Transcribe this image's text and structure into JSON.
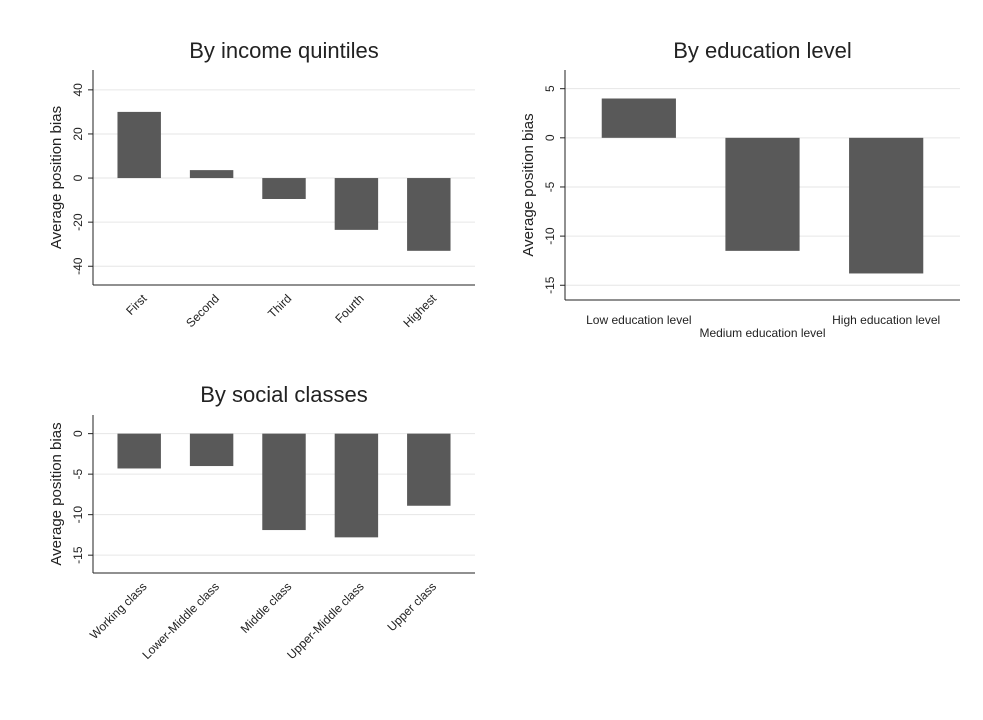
{
  "chart_data": [
    {
      "type": "bar",
      "title": "By income quintiles",
      "y_label": "Average position bias",
      "categories": [
        "First",
        "Second",
        "Third",
        "Fourth",
        "Highest"
      ],
      "values": [
        30,
        3.6,
        -9.5,
        -23.5,
        -33
      ],
      "color": "#595959",
      "ylim": [
        -48.5,
        49
      ],
      "yticks": [
        -40,
        -20,
        0,
        20,
        40
      ],
      "grid": true
    },
    {
      "type": "bar",
      "title": "By education level",
      "y_label": "Average position bias",
      "categories": [
        "Low education level",
        "Medium education level",
        "High education level"
      ],
      "values": [
        4,
        -11.5,
        -13.8
      ],
      "color": "#595959",
      "ylim": [
        -16.5,
        6.9
      ],
      "yticks": [
        -15,
        -10,
        -5,
        0,
        5
      ],
      "grid": true
    },
    {
      "type": "bar",
      "title": "By social classes",
      "y_label": "Average position bias",
      "categories": [
        "Working class",
        "Lower-Middle class",
        "Middle class",
        "Upper-Middle class",
        "Upper class"
      ],
      "values": [
        -4.3,
        -4,
        -11.9,
        -12.8,
        -8.9
      ],
      "color": "#595959",
      "ylim": [
        -17.2,
        2.3
      ],
      "yticks": [
        -15,
        -10,
        -5,
        0
      ],
      "grid": true
    }
  ]
}
